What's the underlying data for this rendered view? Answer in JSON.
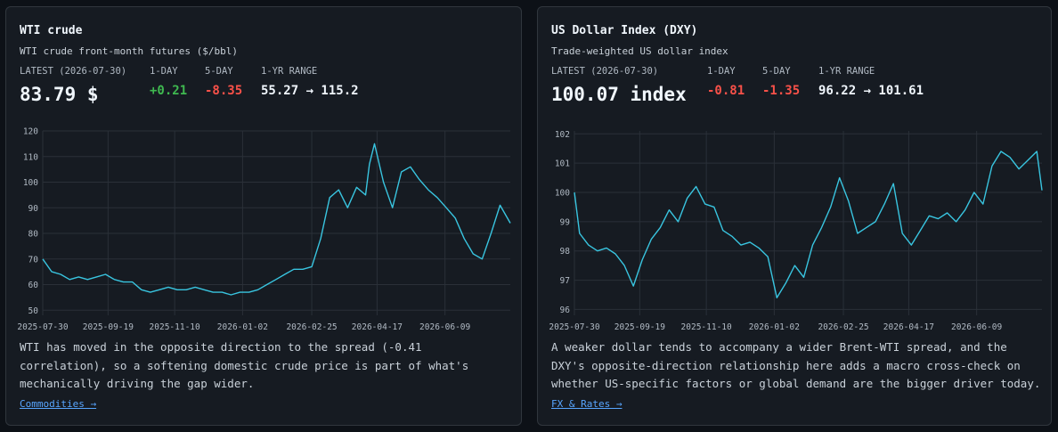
{
  "cards": [
    {
      "title": "WTI crude",
      "subtitle": "WTI crude front-month futures ($/bbl)",
      "latest_label": "LATEST (2026-07-30)",
      "latest_value": "83.79 $",
      "one_day_label": "1-DAY",
      "one_day_value": "+0.21",
      "five_day_label": "5-DAY",
      "five_day_value": "-8.35",
      "range_label": "1-YR RANGE",
      "range_value": "55.27 → 115.2",
      "note": "WTI has moved in the opposite direction to the spread (-0.41 correlation), so a softening domestic crude price is part of what's mechanically driving the gap wider.",
      "link": "Commodities →"
    },
    {
      "title": "US Dollar Index (DXY)",
      "subtitle": "Trade-weighted US dollar index",
      "latest_label": "LATEST (2026-07-30)",
      "latest_value": "100.07 index",
      "one_day_label": "1-DAY",
      "one_day_value": "-0.81",
      "five_day_label": "5-DAY",
      "five_day_value": "-1.35",
      "range_label": "1-YR RANGE",
      "range_value": "96.22 → 101.61",
      "note": "A weaker dollar tends to accompany a wider Brent-WTI spread, and the DXY's opposite-direction relationship here adds a macro cross-check on whether US-specific factors or global demand are the bigger driver today.",
      "link": "FX & Rates →"
    }
  ],
  "colors": {
    "line": "#39c5e0",
    "positive": "#3fb950",
    "negative": "#f85149",
    "link": "#58a6ff"
  },
  "chart_data": [
    {
      "type": "line",
      "title": "",
      "xlabel": "",
      "ylabel": "",
      "ylim": [
        48,
        120
      ],
      "yticks": [
        50,
        60,
        70,
        80,
        90,
        100,
        110,
        120
      ],
      "xtick_labels": [
        "2025-07-30",
        "2025-09-19",
        "2025-11-10",
        "2026-01-02",
        "2026-02-25",
        "2026-04-17",
        "2026-06-09"
      ],
      "grid": true,
      "series": [
        {
          "x": [
            "2025-07-30",
            "2025-08-06",
            "2025-08-13",
            "2025-08-20",
            "2025-08-27",
            "2025-09-03",
            "2025-09-10",
            "2025-09-17",
            "2025-09-24",
            "2025-10-01",
            "2025-10-08",
            "2025-10-15",
            "2025-10-22",
            "2025-10-29",
            "2025-11-05",
            "2025-11-12",
            "2025-11-19",
            "2025-11-26",
            "2025-12-03",
            "2025-12-10",
            "2025-12-17",
            "2025-12-24",
            "2025-12-31",
            "2026-01-07",
            "2026-01-14",
            "2026-01-21",
            "2026-01-28",
            "2026-02-04",
            "2026-02-11",
            "2026-02-18",
            "2026-02-25",
            "2026-03-04",
            "2026-03-11",
            "2026-03-18",
            "2026-03-25",
            "2026-04-01",
            "2026-04-08",
            "2026-04-11",
            "2026-04-15",
            "2026-04-22",
            "2026-04-29",
            "2026-05-06",
            "2026-05-13",
            "2026-05-20",
            "2026-05-27",
            "2026-06-03",
            "2026-06-10",
            "2026-06-17",
            "2026-06-24",
            "2026-07-01",
            "2026-07-08",
            "2026-07-15",
            "2026-07-22",
            "2026-07-30"
          ],
          "values": [
            70,
            65,
            64,
            62,
            63,
            62,
            63,
            64,
            62,
            61,
            61,
            58,
            57,
            58,
            59,
            58,
            58,
            59,
            58,
            57,
            57,
            56,
            57,
            57,
            58,
            60,
            62,
            64,
            66,
            66,
            67,
            78,
            94,
            97,
            90,
            98,
            95,
            107,
            115,
            100,
            90,
            104,
            106,
            101,
            97,
            94,
            90,
            86,
            78,
            72,
            70,
            80,
            91,
            84
          ]
        }
      ]
    },
    {
      "type": "line",
      "title": "",
      "xlabel": "",
      "ylabel": "",
      "ylim": [
        95.8,
        102.1
      ],
      "yticks": [
        96,
        97,
        98,
        99,
        100,
        101,
        102
      ],
      "xtick_labels": [
        "2025-07-30",
        "2025-09-19",
        "2025-11-10",
        "2026-01-02",
        "2026-02-25",
        "2026-04-17",
        "2026-06-09"
      ],
      "grid": true,
      "series": [
        {
          "x": [
            "2025-07-30",
            "2025-08-03",
            "2025-08-10",
            "2025-08-17",
            "2025-08-24",
            "2025-08-31",
            "2025-09-07",
            "2025-09-14",
            "2025-09-21",
            "2025-09-28",
            "2025-10-05",
            "2025-10-12",
            "2025-10-19",
            "2025-10-26",
            "2025-11-02",
            "2025-11-09",
            "2025-11-16",
            "2025-11-23",
            "2025-11-30",
            "2025-12-07",
            "2025-12-14",
            "2025-12-21",
            "2025-12-28",
            "2026-01-04",
            "2026-01-11",
            "2026-01-18",
            "2026-01-25",
            "2026-02-01",
            "2026-02-08",
            "2026-02-15",
            "2026-02-22",
            "2026-03-01",
            "2026-03-08",
            "2026-03-15",
            "2026-03-22",
            "2026-03-29",
            "2026-04-05",
            "2026-04-12",
            "2026-04-19",
            "2026-04-26",
            "2026-05-03",
            "2026-05-10",
            "2026-05-17",
            "2026-05-24",
            "2026-05-31",
            "2026-06-07",
            "2026-06-14",
            "2026-06-21",
            "2026-06-28",
            "2026-07-05",
            "2026-07-12",
            "2026-07-19",
            "2026-07-26",
            "2026-07-30"
          ],
          "values": [
            100.0,
            98.6,
            98.2,
            98.0,
            98.1,
            97.9,
            97.5,
            96.8,
            97.7,
            98.4,
            98.8,
            99.4,
            99.0,
            99.8,
            100.2,
            99.6,
            99.5,
            98.7,
            98.5,
            98.2,
            98.3,
            98.1,
            97.8,
            96.4,
            96.9,
            97.5,
            97.1,
            98.2,
            98.8,
            99.5,
            100.5,
            99.7,
            98.6,
            98.8,
            99.0,
            99.6,
            100.3,
            98.6,
            98.2,
            98.7,
            99.2,
            99.1,
            99.3,
            99.0,
            99.4,
            100.0,
            99.6,
            100.9,
            101.4,
            101.2,
            100.8,
            101.1,
            101.4,
            100.07
          ]
        }
      ]
    }
  ]
}
